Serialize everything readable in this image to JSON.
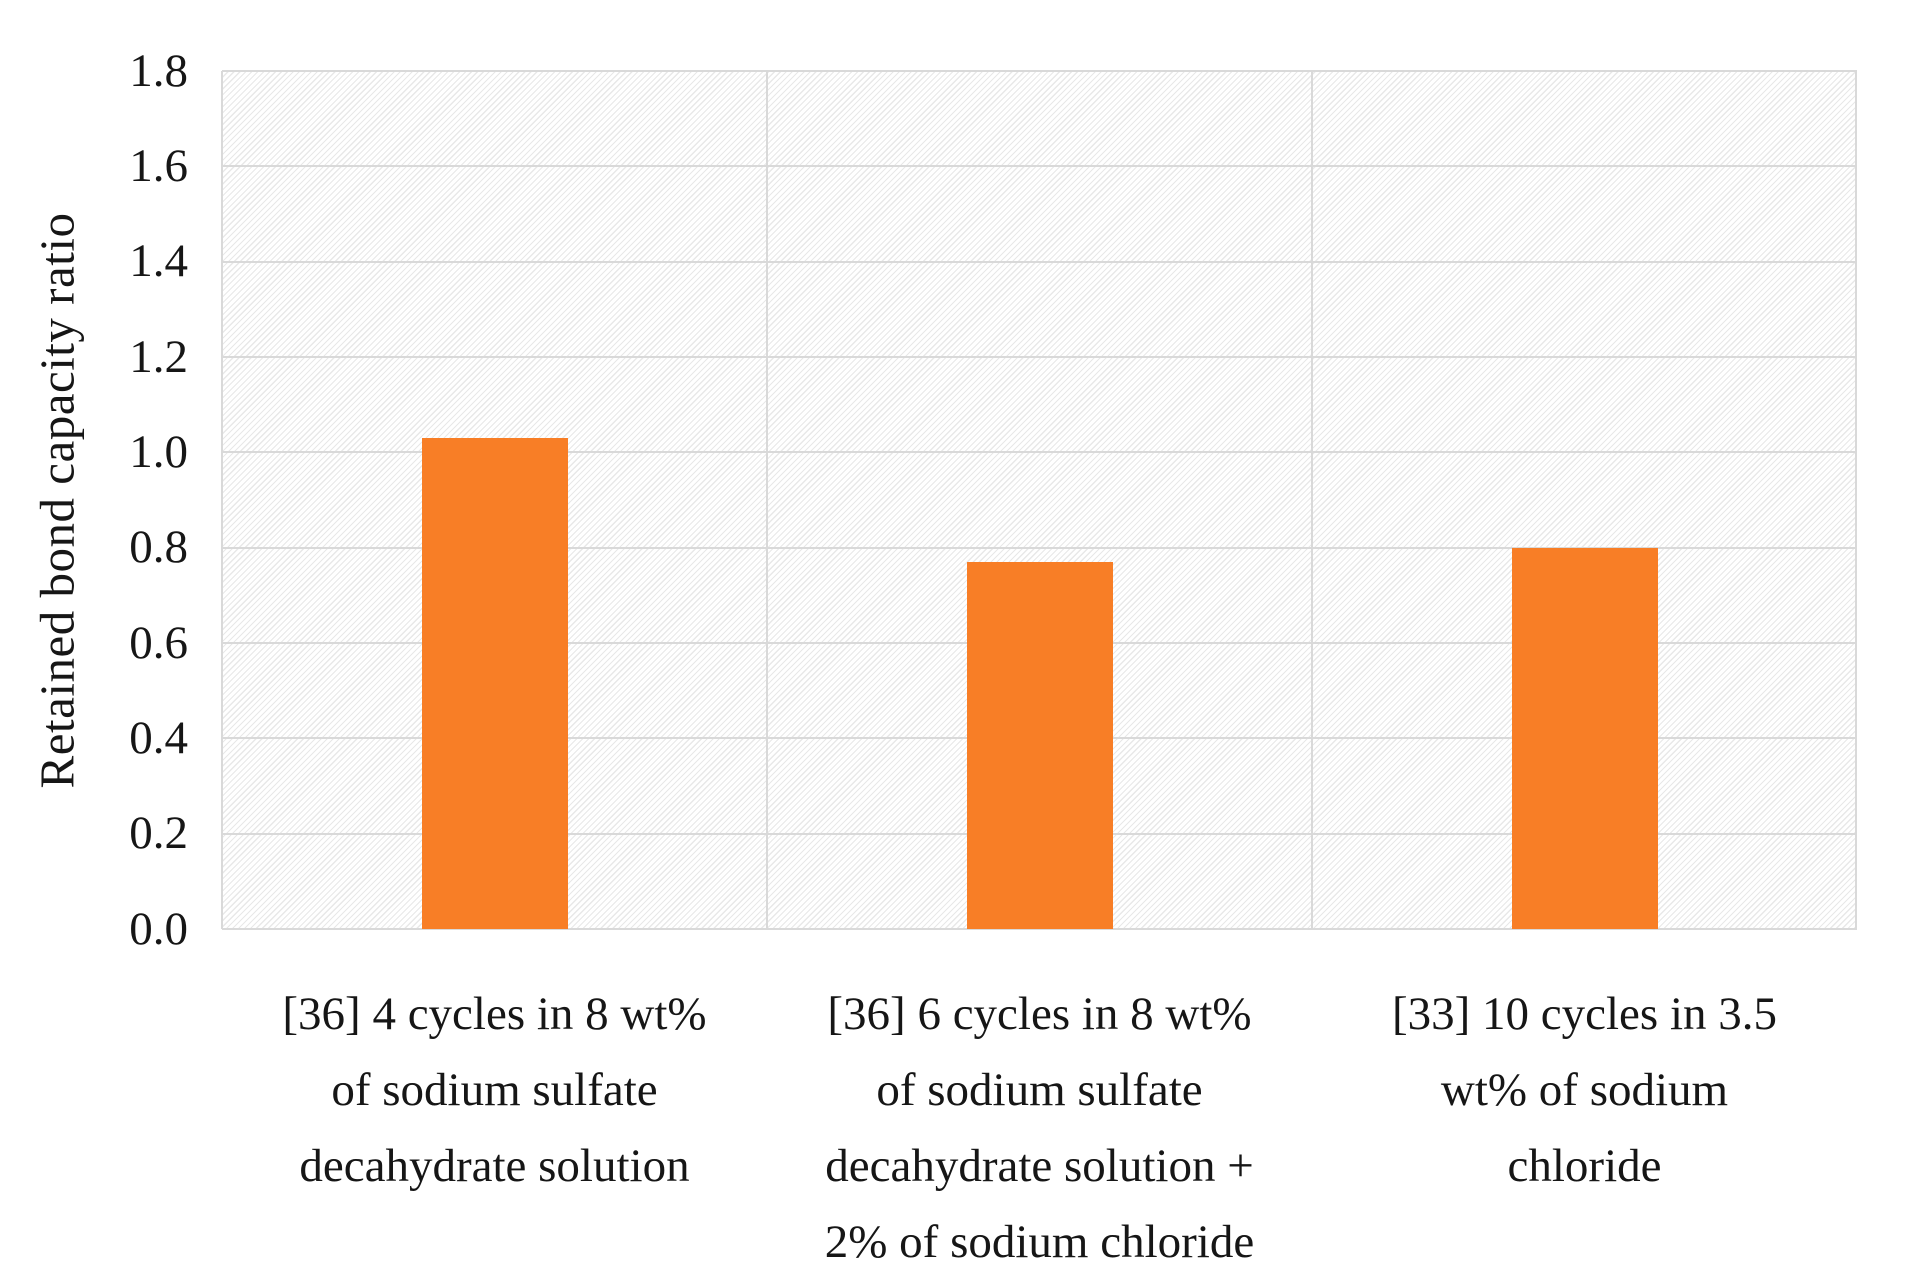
{
  "chart_data": {
    "type": "bar",
    "title": "",
    "xlabel": "",
    "ylabel": "Retained bond capacity ratio",
    "ylim": [
      0.0,
      1.8
    ],
    "ytick_step": 0.2,
    "ytick_labels": [
      "0.0",
      "0.2",
      "0.4",
      "0.6",
      "0.8",
      "1.0",
      "1.2",
      "1.4",
      "1.6",
      "1.8"
    ],
    "grid": "horizontal major gridlines plus vertical category-boundary gridlines",
    "legend_position": "none",
    "plot_background_pattern": "light upward-diagonal hatch",
    "categories": [
      "[36] 4 cycles in 8 wt% of sodium sulfate decahydrate solution",
      "[36] 6 cycles in 8 wt% of sodium sulfate decahydrate solution + 2% of sodium chloride",
      "[33] 10 cycles in 3.5 wt% of sodium chloride"
    ],
    "category_lines": [
      [
        "[36] 4 cycles in 8 wt%",
        "of sodium sulfate",
        "decahydrate solution"
      ],
      [
        "[36] 6 cycles in 8 wt%",
        "of sodium sulfate",
        "decahydrate solution +",
        "2% of sodium chloride"
      ],
      [
        "[33] 10 cycles in 3.5",
        "wt% of sodium",
        "chloride"
      ]
    ],
    "values": [
      1.03,
      0.77,
      0.8
    ],
    "colors": {
      "bar": "#F87E26",
      "gridline": "#D9D9D9",
      "hatch": "#E4E4E4",
      "text": "#161616",
      "background": "#FFFFFF"
    }
  }
}
